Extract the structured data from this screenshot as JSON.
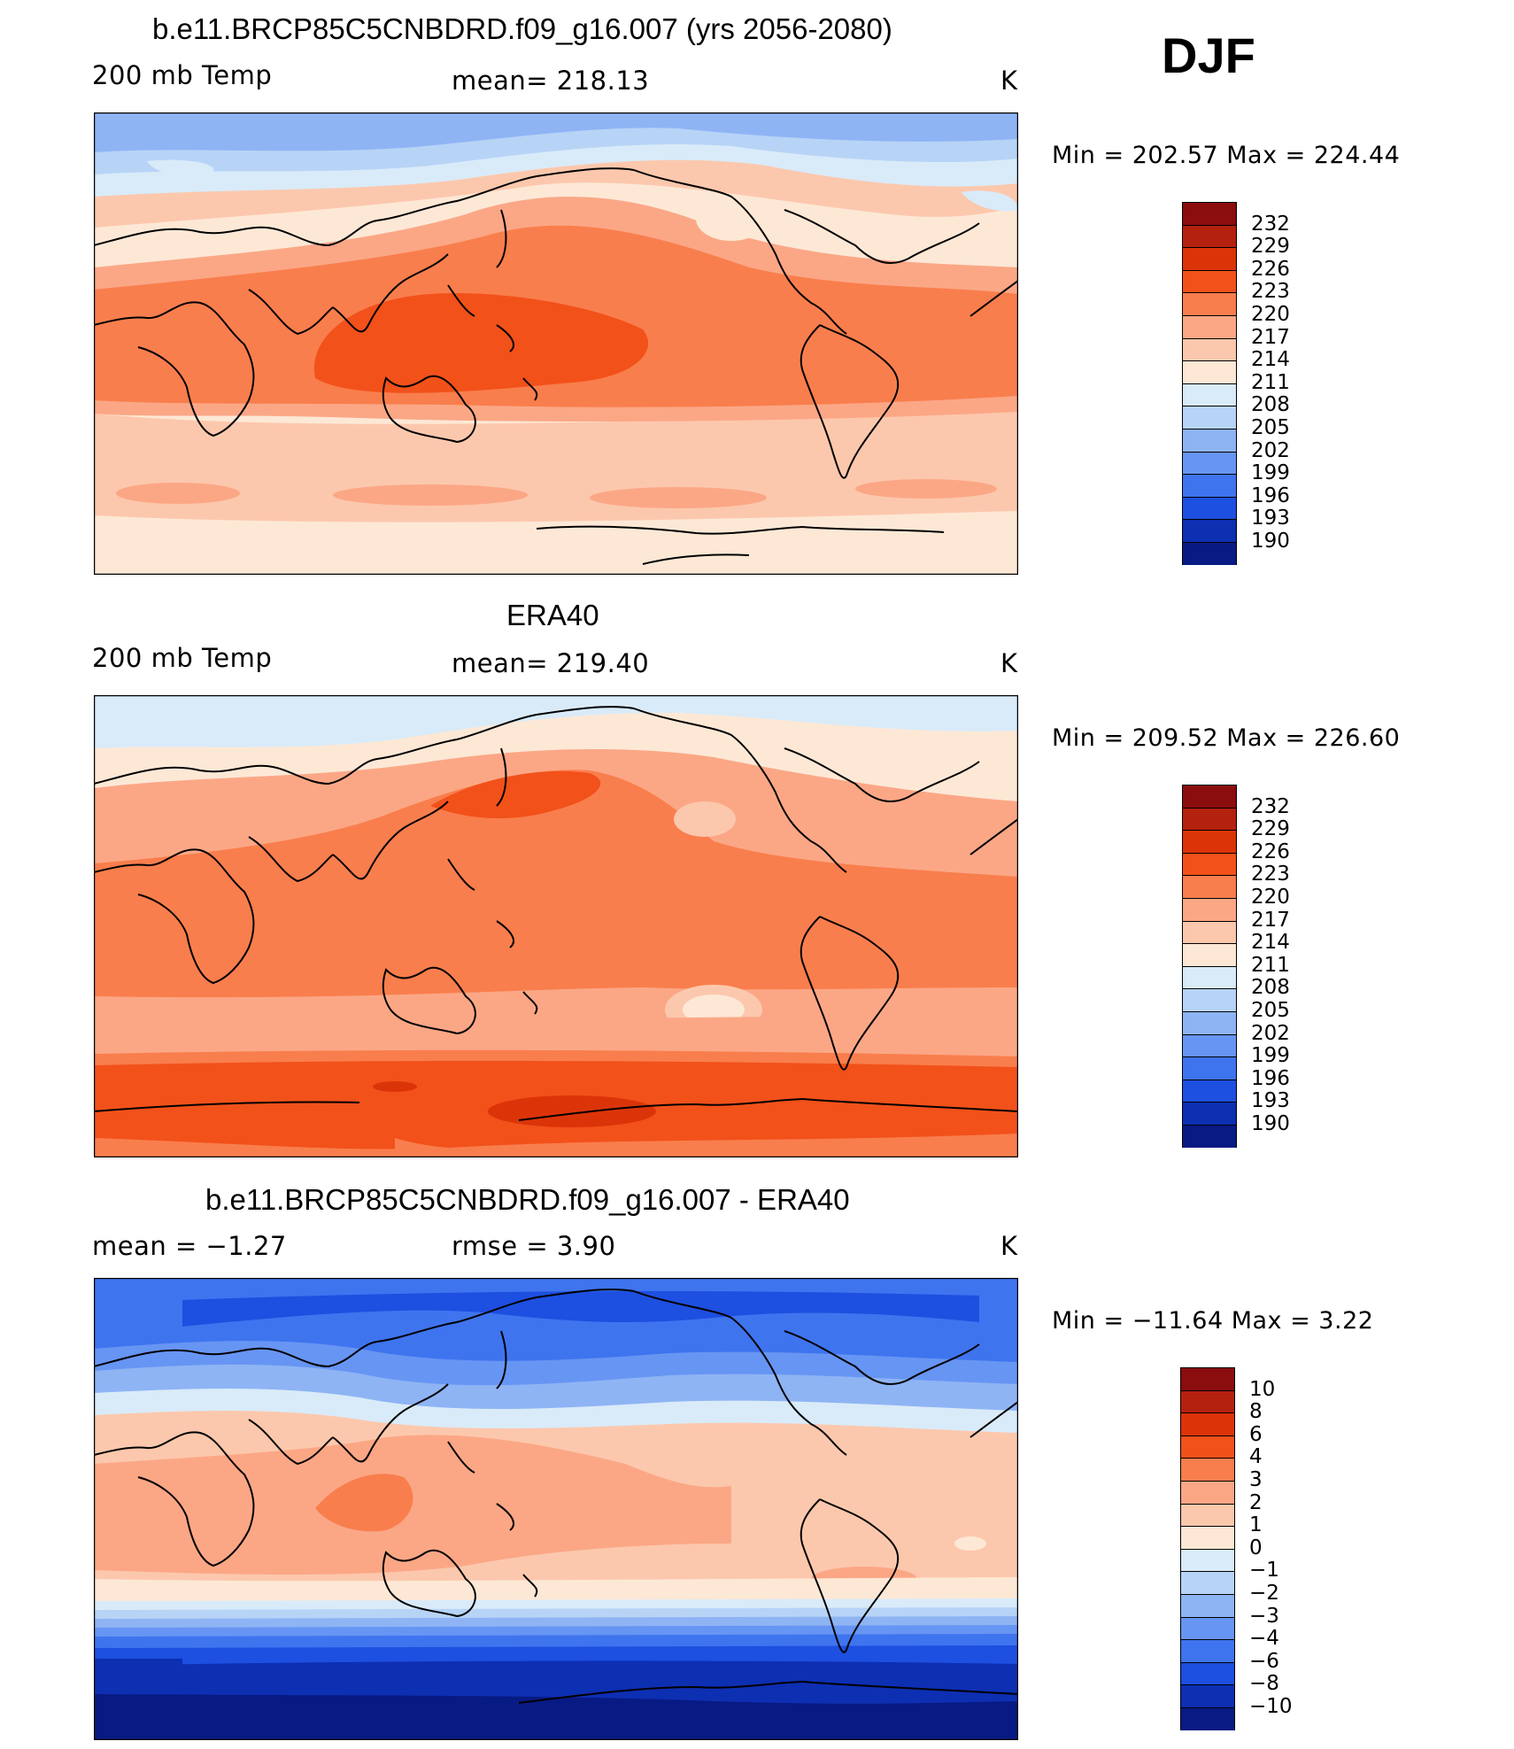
{
  "season": "DJF",
  "panels": [
    {
      "title": "b.e11.BRCP85C5CNBDRD.f09_g16.007 (yrs 2056-2080)",
      "left_label": "200 mb Temp",
      "center_label": "mean=  218.13",
      "units": "K",
      "minmax": "Min  =  202.57  Max  =  224.44"
    },
    {
      "title": "ERA40",
      "left_label": "200 mb Temp",
      "center_label": "mean=  219.40",
      "units": "K",
      "minmax": "Min  =  209.52  Max  =  226.60"
    },
    {
      "title": "b.e11.BRCP85C5CNBDRD.f09_g16.007 - ERA40",
      "left_label": "mean  =    −1.27",
      "center_label": "rmse  =     3.90",
      "units": "K",
      "minmax": "Min  =  −11.64  Max  =     3.22"
    }
  ],
  "temp_scale": {
    "labels": [
      "232",
      "229",
      "226",
      "223",
      "220",
      "217",
      "214",
      "211",
      "208",
      "205",
      "202",
      "199",
      "196",
      "193",
      "190"
    ],
    "colors": [
      "#8b0d0d",
      "#b5210f",
      "#dc3409",
      "#f2511a",
      "#f97e4d",
      "#fba786",
      "#fcc8ad",
      "#fde8d6",
      "#d9ebf9",
      "#b7d4f7",
      "#8fb4f4",
      "#6795f3",
      "#3f74ef",
      "#1d4fe0",
      "#0d2fb2",
      "#081a83"
    ]
  },
  "diff_scale": {
    "labels": [
      "10",
      "8",
      "6",
      "4",
      "3",
      "2",
      "1",
      "0",
      "−1",
      "−2",
      "−3",
      "−4",
      "−6",
      "−8",
      "−10"
    ],
    "colors": [
      "#8b0d0d",
      "#b5210f",
      "#dc3409",
      "#f2511a",
      "#f97e4d",
      "#fba786",
      "#fcc8ad",
      "#fde8d6",
      "#d9ebf9",
      "#b7d4f7",
      "#8fb4f4",
      "#6795f3",
      "#3f74ef",
      "#1d4fe0",
      "#0d2fb2",
      "#081a83"
    ]
  }
}
